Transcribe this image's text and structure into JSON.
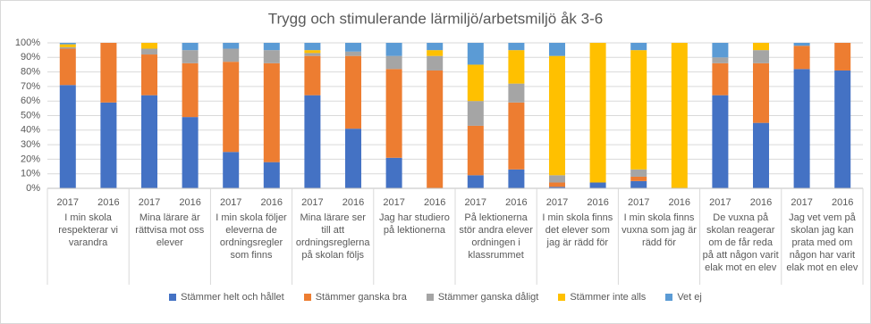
{
  "chart_data": {
    "type": "bar",
    "stacked": true,
    "title": "Trygg och stimulerande lärmiljö/arbetsmiljö åk 3-6",
    "categories": [
      "2017",
      "2016",
      "2017",
      "2016",
      "2017",
      "2016",
      "2017",
      "2016",
      "2017",
      "2016",
      "2017",
      "2016",
      "2017",
      "2016",
      "2017",
      "2016",
      "2017",
      "2016",
      "2017",
      "2016"
    ],
    "groups": [
      "I min skola respekterar vi varandra",
      "Mina lärare är rättvisa mot oss elever",
      "I min skola följer eleverna de ordningsregler som finns",
      "Mina lärare ser till att ordningsreglerna på skolan följs",
      "Jag har studiero på lektionerna",
      "På lektionerna stör andra elever ordningen i klassrummet",
      "I min skola finns det elever som jag är rädd för",
      "I min skola finns vuxna som jag är rädd för",
      "De vuxna på skolan reagerar om de får reda på att någon varit elak mot en elev",
      "Jag vet vem på skolan jag kan prata med om någon har varit elak mot en elev"
    ],
    "series": [
      {
        "name": "Stämmer helt och hållet",
        "color": "#4472c4",
        "values": [
          71,
          59,
          64,
          49,
          25,
          18,
          64,
          41,
          21,
          0,
          9,
          13,
          1,
          4,
          5,
          0,
          64,
          45,
          82,
          81
        ]
      },
      {
        "name": "Stämmer ganska bra",
        "color": "#ed7d31",
        "values": [
          25,
          41,
          28,
          37,
          62,
          68,
          27,
          50,
          61,
          81,
          34,
          46,
          3,
          0,
          3,
          0,
          22,
          41,
          16,
          19
        ]
      },
      {
        "name": "Stämmer ganska dåligt",
        "color": "#a5a5a5",
        "values": [
          1,
          0,
          4,
          9,
          9,
          9,
          2,
          3,
          9,
          10,
          17,
          13,
          5,
          0,
          5,
          0,
          4,
          9,
          0,
          0
        ]
      },
      {
        "name": "Stämmer inte alls",
        "color": "#ffc000",
        "values": [
          2,
          0,
          4,
          0,
          0,
          0,
          2,
          0,
          0,
          4,
          25,
          23,
          82,
          96,
          82,
          100,
          0,
          5,
          0,
          0
        ]
      },
      {
        "name": "Vet ej",
        "color": "#5b9bd5",
        "values": [
          1,
          0,
          0,
          5,
          4,
          5,
          5,
          6,
          9,
          5,
          15,
          5,
          9,
          0,
          5,
          0,
          10,
          0,
          2,
          0
        ]
      }
    ],
    "ylim": [
      0,
      100
    ],
    "yticks": [
      {
        "value": 0,
        "label": "0%"
      },
      {
        "value": 10,
        "label": "10%"
      },
      {
        "value": 20,
        "label": "20%"
      },
      {
        "value": 30,
        "label": "30%"
      },
      {
        "value": 40,
        "label": "40%"
      },
      {
        "value": 50,
        "label": "50%"
      },
      {
        "value": 60,
        "label": "60%"
      },
      {
        "value": 70,
        "label": "70%"
      },
      {
        "value": 80,
        "label": "80%"
      },
      {
        "value": 90,
        "label": "90%"
      },
      {
        "value": 100,
        "label": "100%"
      }
    ],
    "grid": true,
    "legend": "bottom"
  }
}
